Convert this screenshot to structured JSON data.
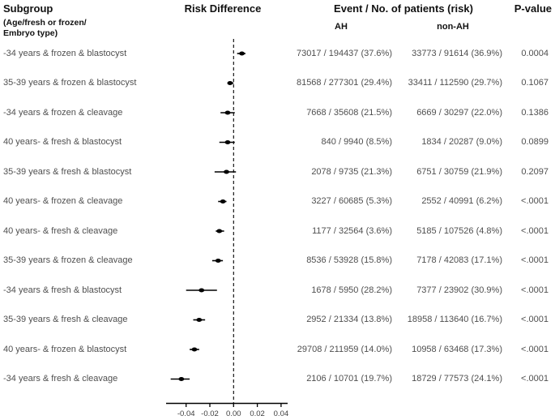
{
  "header": {
    "subgroup": "Subgroup",
    "subgroup_note_line1": "(Age/fresh or frozen/",
    "subgroup_note_line2": "Embryo type)",
    "risk_difference": "Risk Difference",
    "events": "Event / No. of patients (risk)",
    "ah": "AH",
    "non_ah": "non-AH",
    "p_value": "P-value"
  },
  "colors": {
    "marker": "#000000",
    "axis": "#000000",
    "header_text": "#111111",
    "body_text": "#4f4f4f"
  },
  "chart_data": {
    "type": "scatter",
    "subtype": "forest-plot-risk-difference",
    "title": "Risk Difference",
    "xlabel": "",
    "ylabel": "",
    "xlim": [
      -0.057,
      0.046
    ],
    "grid": false,
    "zero_line": 0.0,
    "x_ticks": [
      {
        "value": -0.04,
        "label": "-0.04"
      },
      {
        "value": -0.02,
        "label": "-0.02"
      },
      {
        "value": 0.0,
        "label": "0.00"
      },
      {
        "value": 0.02,
        "label": "0.02"
      },
      {
        "value": 0.04,
        "label": "0.04"
      }
    ],
    "rows": [
      {
        "label": "-34 years & frozen & blastocyst",
        "rd": 0.007,
        "ci": [
          0.003,
          0.01
        ],
        "ah": "73017 / 194437 (37.6%)",
        "non_ah": "33773 / 91614 (36.9%)",
        "p": "0.0004"
      },
      {
        "label": "35-39 years & frozen & blastocyst",
        "rd": -0.003,
        "ci": [
          -0.005,
          0.0
        ],
        "ah": "81568 / 277301 (29.4%)",
        "non_ah": "33411 / 112590 (29.7%)",
        "p": "0.1067"
      },
      {
        "label": "-34 years & frozen & cleavage",
        "rd": -0.005,
        "ci": [
          -0.011,
          0.001
        ],
        "ah": "7668 / 35608 (21.5%)",
        "non_ah": "6669 / 30297 (22.0%)",
        "p": "0.1386"
      },
      {
        "label": "40 years- & fresh & blastocyst",
        "rd": -0.005,
        "ci": [
          -0.012,
          0.001
        ],
        "ah": "840 / 9940 (8.5%)",
        "non_ah": "1834 / 20287 (9.0%)",
        "p": "0.0899"
      },
      {
        "label": "35-39 years & fresh & blastocyst",
        "rd": -0.006,
        "ci": [
          -0.016,
          0.002
        ],
        "ah": "2078 / 9735 (21.3%)",
        "non_ah": "6751 / 30759 (21.9%)",
        "p": "0.2097"
      },
      {
        "label": "40 years- & frozen & cleavage",
        "rd": -0.009,
        "ci": [
          -0.013,
          -0.006
        ],
        "ah": "3227 / 60685 (5.3%)",
        "non_ah": "2552 / 40991 (6.2%)",
        "p": "<.0001"
      },
      {
        "label": "40 years- & fresh & cleavage",
        "rd": -0.012,
        "ci": [
          -0.015,
          -0.008
        ],
        "ah": "1177 / 32564 (3.6%)",
        "non_ah": "5185 / 107526 (4.8%)",
        "p": "<.0001"
      },
      {
        "label": "35-39 years & frozen & cleavage",
        "rd": -0.013,
        "ci": [
          -0.018,
          -0.009
        ],
        "ah": "8536 / 53928 (15.8%)",
        "non_ah": "7178 / 42083 (17.1%)",
        "p": "<.0001"
      },
      {
        "label": "-34 years & fresh & blastocyst",
        "rd": -0.027,
        "ci": [
          -0.04,
          -0.014
        ],
        "ah": "1678 / 5950 (28.2%)",
        "non_ah": "7377 / 23902 (30.9%)",
        "p": "<.0001"
      },
      {
        "label": "35-39 years & fresh & cleavage",
        "rd": -0.029,
        "ci": [
          -0.034,
          -0.024
        ],
        "ah": "2952 / 21334 (13.8%)",
        "non_ah": "18958 / 113640 (16.7%)",
        "p": "<.0001"
      },
      {
        "label": "40 years- & frozen & blastocyst",
        "rd": -0.033,
        "ci": [
          -0.037,
          -0.029
        ],
        "ah": "29708 / 211959 (14.0%)",
        "non_ah": "10958 / 63468 (17.3%)",
        "p": "<.0001"
      },
      {
        "label": "-34 years & fresh & cleavage",
        "rd": -0.044,
        "ci": [
          -0.053,
          -0.037
        ],
        "ah": "2106 / 10701 (19.7%)",
        "non_ah": "18729 / 77573 (24.1%)",
        "p": "<.0001"
      }
    ]
  }
}
